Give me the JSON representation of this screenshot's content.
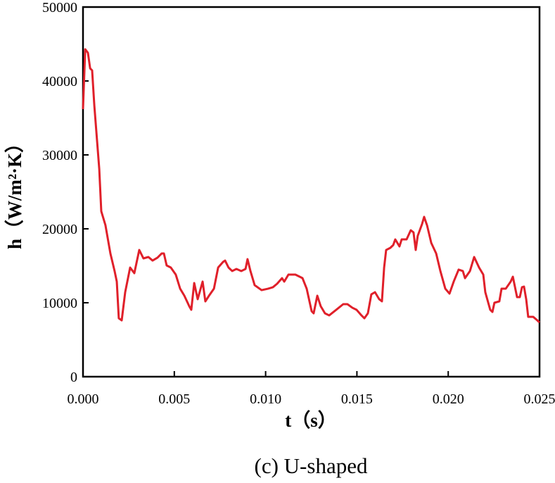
{
  "chart_data": {
    "type": "line",
    "xlabel": "t（s）",
    "ylabel": "h（W/m²·K）",
    "caption": "(c) U-shaped",
    "xlim": [
      0,
      0.025
    ],
    "ylim": [
      0,
      50000
    ],
    "xticks": [
      {
        "value": 0,
        "label": "0.000"
      },
      0.005,
      {
        "value": 0.01,
        "label": "0.010"
      },
      0.015,
      {
        "value": 0.02,
        "label": "0.020"
      },
      0.025
    ],
    "yticks": [
      0,
      10000,
      20000,
      30000,
      40000,
      50000
    ],
    "grid": false,
    "series": [
      {
        "color": "#e0202a",
        "x": [
          0,
          0.00012,
          0.00027,
          0.00039,
          0.0005,
          0.00062,
          0.00077,
          0.00089,
          0.001,
          0.00123,
          0.0015,
          0.00173,
          0.00185,
          0.00196,
          0.00212,
          0.00231,
          0.00258,
          0.00281,
          0.00308,
          0.00331,
          0.00358,
          0.00381,
          0.00408,
          0.00431,
          0.00443,
          0.00458,
          0.00481,
          0.00508,
          0.00532,
          0.00555,
          0.00582,
          0.00593,
          0.00609,
          0.00628,
          0.00655,
          0.0067,
          0.0069,
          0.00717,
          0.0074,
          0.00767,
          0.00778,
          0.00797,
          0.00817,
          0.0084,
          0.00867,
          0.0089,
          0.00901,
          0.00917,
          0.0094,
          0.00978,
          0.01013,
          0.0104,
          0.01063,
          0.0109,
          0.01102,
          0.01125,
          0.01163,
          0.01202,
          0.01225,
          0.01252,
          0.01263,
          0.01283,
          0.01302,
          0.01325,
          0.01348,
          0.01387,
          0.01425,
          0.01448,
          0.01475,
          0.01498,
          0.01525,
          0.01541,
          0.0156,
          0.01579,
          0.01599,
          0.01622,
          0.01637,
          0.01649,
          0.0166,
          0.01683,
          0.01699,
          0.0171,
          0.01733,
          0.01745,
          0.01772,
          0.01795,
          0.0181,
          0.01822,
          0.01833,
          0.01857,
          0.01868,
          0.01884,
          0.01907,
          0.01934,
          0.01957,
          0.01984,
          0.02007,
          0.0203,
          0.02057,
          0.0208,
          0.02092,
          0.02119,
          0.02142,
          0.02169,
          0.02192,
          0.02203,
          0.0223,
          0.02242,
          0.02253,
          0.0228,
          0.02292,
          0.02315,
          0.02342,
          0.02354,
          0.02377,
          0.02392,
          0.02404,
          0.02415,
          0.02427,
          0.02438,
          0.02465,
          0.02488,
          0.025
        ],
        "values": [
          36190,
          44290,
          43810,
          41710,
          41430,
          36670,
          31900,
          28100,
          22380,
          20480,
          16670,
          14290,
          12860,
          7900,
          7620,
          11430,
          14760,
          14000,
          17140,
          16000,
          16190,
          15710,
          16100,
          16670,
          16670,
          15050,
          14760,
          13810,
          11900,
          10950,
          9520,
          9050,
          12670,
          10480,
          12860,
          10190,
          10950,
          11900,
          14760,
          15520,
          15710,
          14760,
          14290,
          14570,
          14290,
          14570,
          15900,
          14290,
          12380,
          11710,
          11900,
          12100,
          12570,
          13330,
          12860,
          13810,
          13810,
          13330,
          11900,
          8860,
          8570,
          10950,
          9520,
          8570,
          8290,
          9050,
          9810,
          9810,
          9330,
          9050,
          8290,
          7900,
          8570,
          11140,
          11430,
          10480,
          10190,
          14760,
          17140,
          17430,
          17810,
          18570,
          17620,
          18570,
          18570,
          19810,
          19520,
          17140,
          19050,
          20670,
          21620,
          20480,
          18100,
          16670,
          14290,
          11900,
          11240,
          12860,
          14480,
          14290,
          13330,
          14290,
          16190,
          14760,
          13810,
          11430,
          9050,
          8760,
          10000,
          10190,
          11900,
          11900,
          12860,
          13520,
          10760,
          10760,
          12100,
          12190,
          10480,
          8100,
          8100,
          7620,
          7330
        ]
      }
    ]
  }
}
